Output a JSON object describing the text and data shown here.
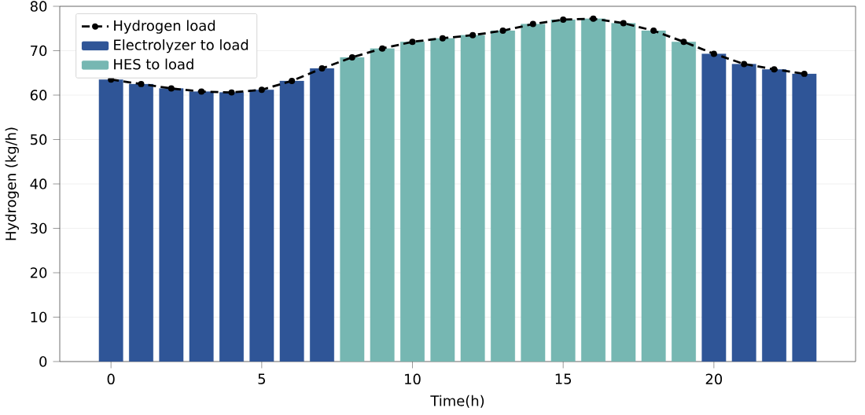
{
  "chart_data": {
    "type": "bar",
    "xlabel": "Time(h)",
    "ylabel": "Hydrogen (kg/h)",
    "x": [
      0,
      1,
      2,
      3,
      4,
      5,
      6,
      7,
      8,
      9,
      10,
      11,
      12,
      13,
      14,
      15,
      16,
      17,
      18,
      19,
      20,
      21,
      22,
      23
    ],
    "series": [
      {
        "name": "Hydrogen load",
        "type": "line",
        "color": "#000000",
        "marker": "circle",
        "line_style": "dashed",
        "values": [
          63.5,
          62.5,
          61.5,
          60.8,
          60.6,
          61.2,
          63.2,
          66,
          68.5,
          70.5,
          72,
          72.8,
          73.5,
          74.5,
          76,
          77,
          77.2,
          76.2,
          74.5,
          72,
          69.3,
          67,
          65.8,
          64.8
        ]
      },
      {
        "name": "Electrolyzer to load",
        "color": "#2f5597",
        "values": [
          63.5,
          62.5,
          61.5,
          60.8,
          60.6,
          61.2,
          63.2,
          66,
          null,
          null,
          null,
          null,
          null,
          null,
          null,
          null,
          null,
          null,
          null,
          null,
          69.3,
          67,
          65.8,
          64.8
        ]
      },
      {
        "name": "HES to load",
        "color": "#76b7b2",
        "values": [
          null,
          null,
          null,
          null,
          null,
          null,
          null,
          null,
          68.5,
          70.5,
          72,
          72.8,
          73.5,
          74.5,
          76,
          77,
          77.2,
          76.2,
          74.5,
          72,
          null,
          null,
          null,
          null
        ]
      }
    ],
    "xlim": [
      -1.7,
      24.7
    ],
    "xticks": [
      0,
      5,
      10,
      15,
      20
    ],
    "ylim": [
      0,
      80
    ],
    "yticks": [
      0,
      10,
      20,
      30,
      40,
      50,
      60,
      70,
      80
    ],
    "grid": "y",
    "legend": "top left"
  }
}
